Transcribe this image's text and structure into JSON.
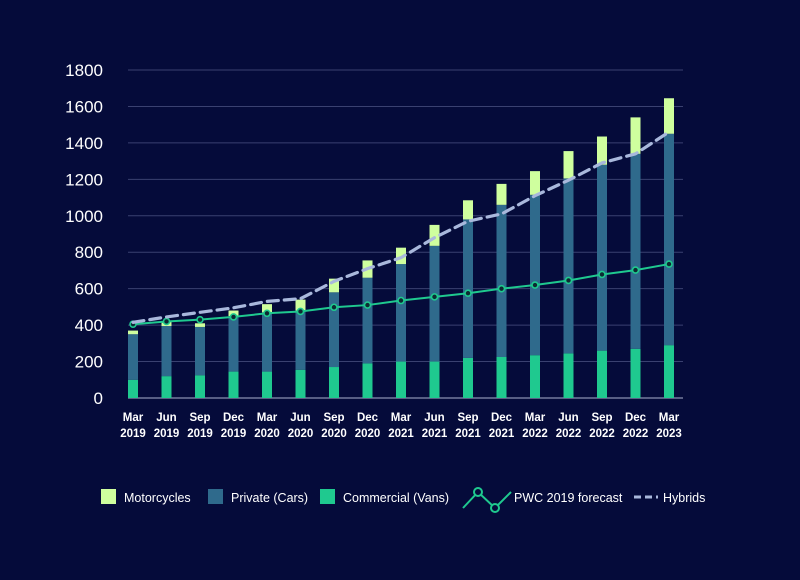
{
  "chart_data": {
    "type": "bar",
    "stacked": true,
    "categories": [
      [
        "Mar",
        "2019"
      ],
      [
        "Jun",
        "2019"
      ],
      [
        "Sep",
        "2019"
      ],
      [
        "Dec",
        "2019"
      ],
      [
        "Mar",
        "2020"
      ],
      [
        "Jun",
        "2020"
      ],
      [
        "Sep",
        "2020"
      ],
      [
        "Dec",
        "2020"
      ],
      [
        "Mar",
        "2021"
      ],
      [
        "Jun",
        "2021"
      ],
      [
        "Sep",
        "2021"
      ],
      [
        "Dec",
        "2021"
      ],
      [
        "Mar",
        "2022"
      ],
      [
        "Jun",
        "2022"
      ],
      [
        "Sep",
        "2022"
      ],
      [
        "Dec",
        "2022"
      ],
      [
        "Mar",
        "2023"
      ]
    ],
    "ylim": [
      0,
      1800
    ],
    "yticks": [
      0,
      200,
      400,
      600,
      800,
      1000,
      1200,
      1400,
      1600,
      1800
    ],
    "grid": true,
    "legend_position": "bottom",
    "series": [
      {
        "name": "Commercial (Vans)",
        "kind": "bar",
        "color": "#1fc98f",
        "values": [
          100,
          120,
          125,
          145,
          145,
          155,
          170,
          190,
          200,
          200,
          220,
          225,
          235,
          245,
          260,
          270,
          290
        ]
      },
      {
        "name": "Private (Cars)",
        "kind": "bar",
        "color": "#2f6a8c",
        "values": [
          250,
          275,
          265,
          305,
          325,
          325,
          410,
          470,
          535,
          635,
          760,
          835,
          880,
          960,
          1020,
          1070,
          1160
        ]
      },
      {
        "name": "Motorcycles",
        "kind": "bar",
        "color": "#cfff9e",
        "values": [
          20,
          25,
          20,
          30,
          45,
          60,
          75,
          95,
          90,
          115,
          105,
          115,
          130,
          150,
          155,
          200,
          195
        ]
      },
      {
        "name": "PWC 2019 forecast",
        "kind": "line",
        "color": "#1fc98f",
        "values": [
          405,
          420,
          430,
          445,
          465,
          475,
          498,
          510,
          535,
          555,
          575,
          600,
          620,
          645,
          678,
          702,
          735
        ]
      },
      {
        "name": "Hybrids",
        "kind": "line-dashed",
        "color": "#a9b8dc",
        "values": [
          415,
          445,
          470,
          495,
          530,
          545,
          640,
          710,
          770,
          880,
          970,
          1010,
          1110,
          1195,
          1290,
          1340,
          1460
        ]
      }
    ],
    "legend": [
      "Motorcycles",
      "Private (Cars)",
      "Commercial (Vans)",
      "PWC 2019 forecast",
      "Hybrids"
    ]
  }
}
